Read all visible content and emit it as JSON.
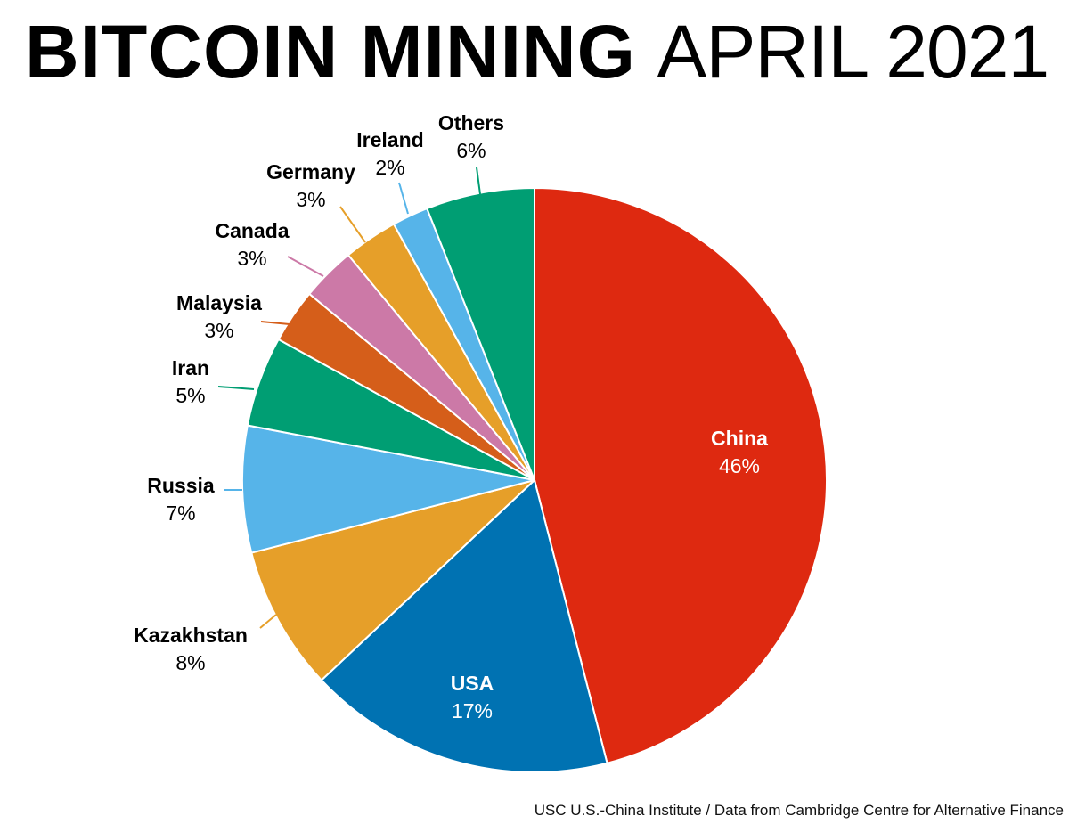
{
  "chart_data": {
    "type": "pie",
    "title_bold": "BITCOIN MINING",
    "title_light": "APRIL 2021",
    "start": "top",
    "direction": "clockwise",
    "slices": [
      {
        "label": "China",
        "value": 46,
        "pct_label": "46%",
        "color": "#DE2910"
      },
      {
        "label": "USA",
        "value": 17,
        "pct_label": "17%",
        "color": "#0072B2"
      },
      {
        "label": "Kazakhstan",
        "value": 8,
        "pct_label": "8%",
        "color": "#E69F29"
      },
      {
        "label": "Russia",
        "value": 7,
        "pct_label": "7%",
        "color": "#56B4E9"
      },
      {
        "label": "Iran",
        "value": 5,
        "pct_label": "5%",
        "color": "#009E73"
      },
      {
        "label": "Malaysia",
        "value": 3,
        "pct_label": "3%",
        "color": "#D55E1A"
      },
      {
        "label": "Canada",
        "value": 3,
        "pct_label": "3%",
        "color": "#CC79A7"
      },
      {
        "label": "Germany",
        "value": 3,
        "pct_label": "3%",
        "color": "#E69F29"
      },
      {
        "label": "Ireland",
        "value": 2,
        "pct_label": "2%",
        "color": "#56B4E9"
      },
      {
        "label": "Others",
        "value": 6,
        "pct_label": "6%",
        "color": "#009E73"
      }
    ],
    "source": "USC U.S.-China Institute / Data from Cambridge Centre for Alternative Finance"
  }
}
